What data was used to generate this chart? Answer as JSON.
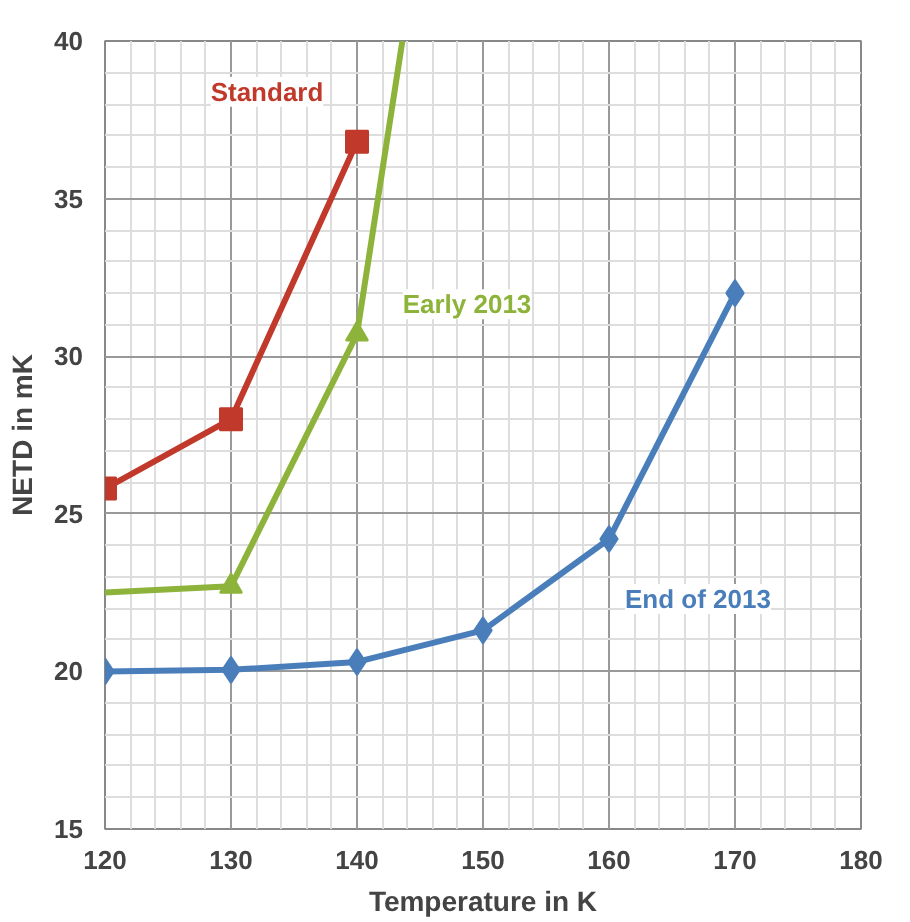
{
  "chart_data": {
    "type": "line",
    "xlabel": "Temperature in K",
    "ylabel": "NETD in mK",
    "xlim": [
      120,
      180
    ],
    "xticks": [
      120,
      130,
      140,
      150,
      160,
      170,
      180
    ],
    "ylim": [
      15,
      40
    ],
    "yticks": [
      15,
      20,
      25,
      30,
      35,
      40
    ],
    "grid": true,
    "series": [
      {
        "name": "Standard",
        "color": "#c0392b",
        "marker": "square",
        "x": [
          120,
          130,
          140
        ],
        "values": [
          25.8,
          28.0,
          36.8
        ]
      },
      {
        "color": "#8db33a",
        "marker": "none",
        "x": [
          120,
          130,
          140,
          143.6
        ],
        "values": [
          22.5,
          22.7,
          30.7,
          40
        ]
      },
      {
        "name": "Early 2013",
        "type": "scatter",
        "color": "#8db33a",
        "marker": "triangle",
        "x": [
          130,
          140
        ],
        "values": [
          22.7,
          30.7
        ]
      },
      {
        "name": "End of 2013",
        "color": "#4a7ebb",
        "marker": "diamond",
        "x": [
          120,
          130,
          140,
          150,
          160,
          170
        ],
        "values": [
          20.0,
          20.05,
          20.3,
          21.3,
          24.2,
          32.0
        ]
      }
    ]
  }
}
